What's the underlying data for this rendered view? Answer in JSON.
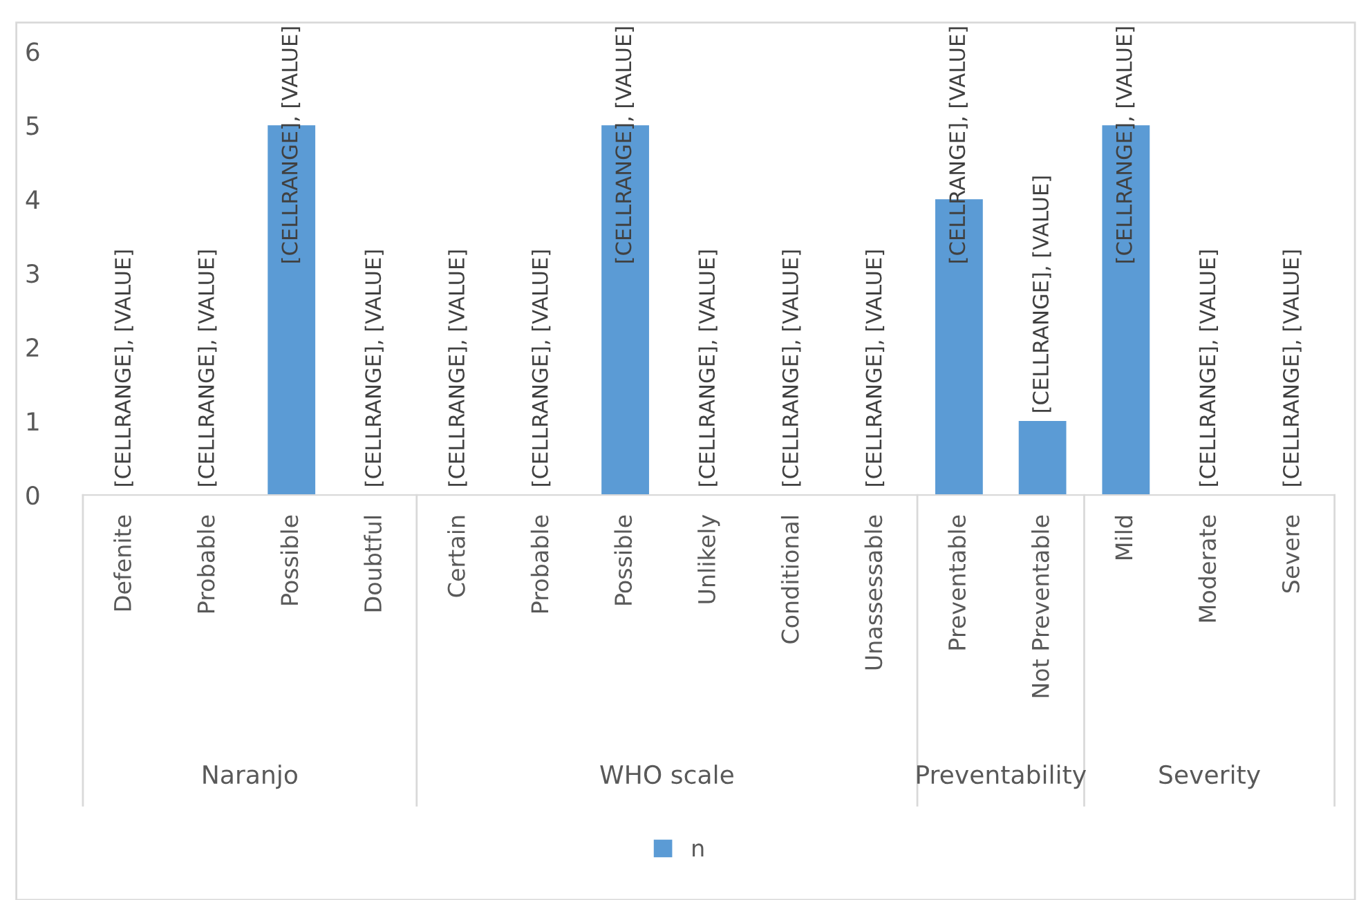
{
  "chart_data": {
    "type": "bar",
    "categories": [
      "Defenite",
      "Probable",
      "Possible",
      "Doubtful",
      "Certain",
      "Probable",
      "Possible",
      "Unlikely",
      "Conditional",
      "Unassessable",
      "Preventable",
      "Not Preventable",
      "Mild",
      "Moderate",
      "Severe"
    ],
    "series": [
      {
        "name": "n",
        "color": "#5b9bd5",
        "values": [
          0,
          0,
          5,
          0,
          0,
          0,
          5,
          0,
          0,
          0,
          4,
          1,
          5,
          0,
          0
        ],
        "value_labels": [
          "[CELLRANGE], [VALUE]",
          "[CELLRANGE], [VALUE]",
          "[CELLRANGE], [VALUE]",
          "[CELLRANGE], [VALUE]",
          "[CELLRANGE], [VALUE]",
          "[CELLRANGE], [VALUE]",
          "[CELLRANGE], [VALUE]",
          "[CELLRANGE], [VALUE]",
          "[CELLRANGE], [VALUE]",
          "[CELLRANGE], [VALUE]",
          "[CELLRANGE], [VALUE]",
          "[CELLRANGE], [VALUE]",
          "[CELLRANGE], [VALUE]",
          "[CELLRANGE], [VALUE]",
          "[CELLRANGE], [VALUE]"
        ]
      }
    ],
    "annotations": [
      "Naranjo",
      "WHO scale",
      "Preventability",
      "Severity"
    ],
    "ylim": [
      0,
      6
    ],
    "yticks": [
      0,
      1,
      2,
      3,
      4,
      5,
      6
    ],
    "grid": false,
    "legend": "bottom"
  }
}
